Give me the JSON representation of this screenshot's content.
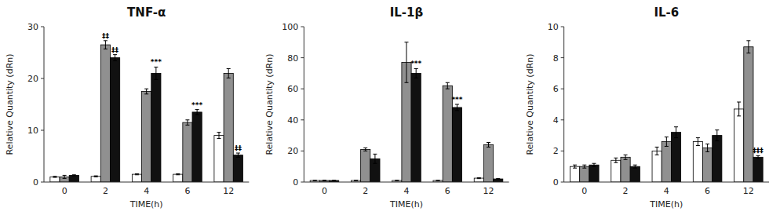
{
  "chart_data": [
    {
      "type": "bar",
      "title": "TNF-α",
      "xlabel": "TIME(h)",
      "ylabel": "Relative Quantity (dRn)",
      "categories": [
        "0",
        "2",
        "4",
        "6",
        "12"
      ],
      "ylim": [
        0,
        30
      ],
      "yticks": [
        0,
        10,
        20,
        30
      ],
      "grid": false,
      "series": [
        {
          "color": "white",
          "values": [
            1.0,
            1.1,
            1.5,
            1.5,
            9.0
          ],
          "errors": [
            0.1,
            0.1,
            0.1,
            0.1,
            0.6
          ]
        },
        {
          "color": "#909090",
          "values": [
            1.0,
            26.5,
            17.5,
            11.5,
            21.0
          ],
          "errors": [
            0.3,
            0.8,
            0.5,
            0.5,
            0.9
          ]
        },
        {
          "color": "#111111",
          "values": [
            1.3,
            24.0,
            21.0,
            13.5,
            5.2
          ],
          "errors": [
            0.1,
            0.6,
            1.2,
            0.5,
            0.4
          ]
        }
      ],
      "annotations": [
        {
          "category": "2",
          "series": 1,
          "text": "‡‡"
        },
        {
          "category": "2",
          "series": 2,
          "text": "‡‡"
        },
        {
          "category": "4",
          "series": 2,
          "text": "***"
        },
        {
          "category": "6",
          "series": 2,
          "text": "***"
        },
        {
          "category": "12",
          "series": 2,
          "text": "‡‡"
        }
      ]
    },
    {
      "type": "bar",
      "title": "IL-1β",
      "xlabel": "TIME(h)",
      "ylabel": "Relative Quantity (dRn)",
      "categories": [
        "0",
        "2",
        "4",
        "6",
        "12"
      ],
      "ylim": [
        0,
        100
      ],
      "yticks": [
        0,
        20,
        40,
        60,
        80,
        100
      ],
      "grid": false,
      "series": [
        {
          "color": "white",
          "values": [
            1.0,
            1.0,
            1.0,
            1.0,
            2.5
          ],
          "errors": [
            0.1,
            0.1,
            0.1,
            0.1,
            0.3
          ]
        },
        {
          "color": "#909090",
          "values": [
            1.0,
            21.0,
            77.0,
            62.0,
            24.0
          ],
          "errors": [
            0.2,
            1.0,
            13.0,
            2.0,
            1.5
          ]
        },
        {
          "color": "#111111",
          "values": [
            1.0,
            15.0,
            70.0,
            48.0,
            2.0
          ],
          "errors": [
            0.1,
            3.0,
            3.0,
            2.0,
            0.3
          ]
        }
      ],
      "annotations": [
        {
          "category": "4",
          "series": 2,
          "text": "***"
        },
        {
          "category": "6",
          "series": 2,
          "text": "***"
        }
      ]
    },
    {
      "type": "bar",
      "title": "IL-6",
      "xlabel": "TIME(h)",
      "ylabel": "Relative Quantity (dRn)",
      "categories": [
        "0",
        "2",
        "4",
        "6",
        "12"
      ],
      "ylim": [
        0,
        10
      ],
      "yticks": [
        0,
        2,
        4,
        6,
        8,
        10
      ],
      "grid": false,
      "series": [
        {
          "color": "white",
          "values": [
            1.0,
            1.4,
            2.0,
            2.6,
            4.7
          ],
          "errors": [
            0.1,
            0.15,
            0.25,
            0.25,
            0.45
          ]
        },
        {
          "color": "#909090",
          "values": [
            1.0,
            1.6,
            2.6,
            2.2,
            8.7
          ],
          "errors": [
            0.1,
            0.15,
            0.3,
            0.25,
            0.4
          ]
        },
        {
          "color": "#111111",
          "values": [
            1.1,
            1.0,
            3.2,
            3.0,
            1.6
          ],
          "errors": [
            0.1,
            0.1,
            0.35,
            0.35,
            0.1
          ]
        }
      ],
      "annotations": [
        {
          "category": "12",
          "series": 2,
          "text": "‡‡‡"
        }
      ]
    }
  ]
}
